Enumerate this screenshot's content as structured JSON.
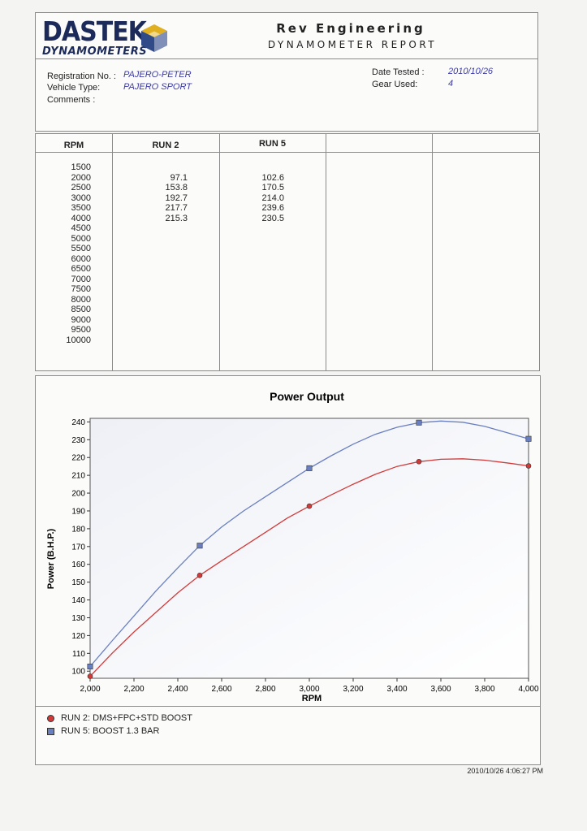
{
  "header": {
    "logo_main": "DASTEK",
    "logo_sub": "DYNAMOMETERS",
    "company": "Rev Engineering",
    "report_title": "DYNAMOMETER REPORT"
  },
  "info": {
    "registration_label": "Registration No. :",
    "registration_value": "PAJERO-PETER",
    "vehicle_label": "Vehicle Type:",
    "vehicle_value": "PAJERO SPORT",
    "comments_label": "Comments :",
    "date_label": "Date Tested :",
    "date_value": "2010/10/26",
    "gear_label": "Gear Used:",
    "gear_value": "4"
  },
  "table": {
    "headers": [
      "RPM",
      "RUN 2",
      "RUN 5",
      "",
      ""
    ],
    "rpm": [
      "1500",
      "2000",
      "2500",
      "3000",
      "3500",
      "4000",
      "4500",
      "5000",
      "5500",
      "6000",
      "6500",
      "7000",
      "7500",
      "8000",
      "8500",
      "9000",
      "9500",
      "10000"
    ],
    "run2": [
      "",
      "97.1",
      "153.8",
      "192.7",
      "217.7",
      "215.3"
    ],
    "run5": [
      "",
      "102.6",
      "170.5",
      "214.0",
      "239.6",
      "230.5"
    ]
  },
  "chart_data": {
    "type": "line",
    "title": "Power Output",
    "xlabel": "RPM",
    "ylabel": "Power (B.H.P.)",
    "xlim": [
      2000,
      4000
    ],
    "ylim": [
      96,
      242
    ],
    "x_ticks": [
      "2,000",
      "2,200",
      "2,400",
      "2,600",
      "2,800",
      "3,000",
      "3,200",
      "3,400",
      "3,600",
      "3,800",
      "4,000"
    ],
    "x_tick_values": [
      2000,
      2200,
      2400,
      2600,
      2800,
      3000,
      3200,
      3400,
      3600,
      3800,
      4000
    ],
    "y_ticks": [
      "100",
      "110",
      "120",
      "130",
      "140",
      "150",
      "160",
      "170",
      "180",
      "190",
      "200",
      "210",
      "220",
      "230",
      "240"
    ],
    "y_tick_values": [
      100,
      110,
      120,
      130,
      140,
      150,
      160,
      170,
      180,
      190,
      200,
      210,
      220,
      230,
      240
    ],
    "series": [
      {
        "name": "RUN 2: DMS+FPC+STD BOOST",
        "color": "#d23a3a",
        "marker": "circle",
        "points": [
          [
            2000,
            97.1
          ],
          [
            2500,
            153.8
          ],
          [
            3000,
            192.7
          ],
          [
            3500,
            217.7
          ],
          [
            4000,
            215.3
          ]
        ],
        "curve": [
          [
            2000,
            97.1
          ],
          [
            2100,
            110
          ],
          [
            2200,
            122
          ],
          [
            2300,
            133
          ],
          [
            2400,
            144
          ],
          [
            2500,
            153.8
          ],
          [
            2600,
            162
          ],
          [
            2700,
            170
          ],
          [
            2800,
            178
          ],
          [
            2900,
            186
          ],
          [
            3000,
            192.7
          ],
          [
            3100,
            199
          ],
          [
            3200,
            205
          ],
          [
            3300,
            210.5
          ],
          [
            3400,
            215
          ],
          [
            3500,
            217.7
          ],
          [
            3600,
            219
          ],
          [
            3700,
            219.3
          ],
          [
            3800,
            218.5
          ],
          [
            3900,
            217
          ],
          [
            4000,
            215.3
          ]
        ]
      },
      {
        "name": "RUN 5: BOOST 1.3 BAR",
        "color": "#6a7fbf",
        "marker": "square",
        "points": [
          [
            2000,
            102.6
          ],
          [
            2500,
            170.5
          ],
          [
            3000,
            214.0
          ],
          [
            3500,
            239.6
          ],
          [
            4000,
            230.5
          ]
        ],
        "curve": [
          [
            2000,
            102.6
          ],
          [
            2100,
            117
          ],
          [
            2200,
            131
          ],
          [
            2300,
            145
          ],
          [
            2400,
            158
          ],
          [
            2500,
            170.5
          ],
          [
            2600,
            181
          ],
          [
            2700,
            190
          ],
          [
            2800,
            198
          ],
          [
            2900,
            206
          ],
          [
            3000,
            214.0
          ],
          [
            3100,
            221
          ],
          [
            3200,
            227.5
          ],
          [
            3300,
            233
          ],
          [
            3400,
            237
          ],
          [
            3500,
            239.6
          ],
          [
            3600,
            240.5
          ],
          [
            3700,
            239.8
          ],
          [
            3800,
            237.5
          ],
          [
            3900,
            234
          ],
          [
            4000,
            230.5
          ]
        ]
      }
    ]
  },
  "legend": [
    {
      "label": "RUN 2: DMS+FPC+STD BOOST",
      "color": "#d23a3a",
      "marker": "circle"
    },
    {
      "label": "RUN 5: BOOST 1.3 BAR",
      "color": "#6a7fbf",
      "marker": "square"
    }
  ],
  "footer": {
    "timestamp": "2010/10/26 4:06:27 PM"
  },
  "colors": {
    "logo": "#1c2a5a",
    "value_text": "#3a3aa8",
    "run2": "#d23a3a",
    "run5": "#6a7fbf"
  }
}
